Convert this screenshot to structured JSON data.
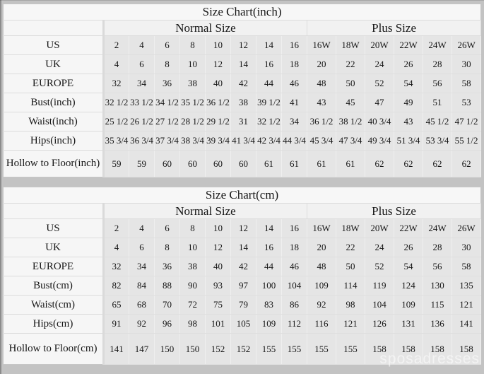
{
  "page": {
    "background": "#c3c3c3",
    "watermark": "sposadresses",
    "colors": {
      "page_bg": "#c3c3c3",
      "header_bg": "#f6f6f6",
      "cell_bg": "#e5e5e5",
      "text": "#161616"
    }
  },
  "chart_data": [
    {
      "type": "table",
      "title": "Size Chart(inch)",
      "column_groups": [
        {
          "label": "Normal Size",
          "span": 8
        },
        {
          "label": "Plus Size",
          "span": 6
        }
      ],
      "rows": [
        {
          "label": "US",
          "values": [
            "2",
            "4",
            "6",
            "8",
            "10",
            "12",
            "14",
            "16",
            "16W",
            "18W",
            "20W",
            "22W",
            "24W",
            "26W"
          ]
        },
        {
          "label": "UK",
          "values": [
            "4",
            "6",
            "8",
            "10",
            "12",
            "14",
            "16",
            "18",
            "20",
            "22",
            "24",
            "26",
            "28",
            "30"
          ]
        },
        {
          "label": "EUROPE",
          "values": [
            "32",
            "34",
            "36",
            "38",
            "40",
            "42",
            "44",
            "46",
            "48",
            "50",
            "52",
            "54",
            "56",
            "58"
          ]
        },
        {
          "label": "Bust(inch)",
          "values": [
            "32 1/2",
            "33 1/2",
            "34 1/2",
            "35 1/2",
            "36 1/2",
            "38",
            "39 1/2",
            "41",
            "43",
            "45",
            "47",
            "49",
            "51",
            "53"
          ]
        },
        {
          "label": "Waist(inch)",
          "values": [
            "25 1/2",
            "26 1/2",
            "27 1/2",
            "28 1/2",
            "29 1/2",
            "31",
            "32 1/2",
            "34",
            "36 1/2",
            "38 1/2",
            "40 3/4",
            "43",
            "45 1/2",
            "47 1/2"
          ]
        },
        {
          "label": "Hips(inch)",
          "values": [
            "35 3/4",
            "36 3/4",
            "37 3/4",
            "38 3/4",
            "39 3/4",
            "41 3/4",
            "42 3/4",
            "44 3/4",
            "45 3/4",
            "47 3/4",
            "49 3/4",
            "51 3/4",
            "53 3/4",
            "55 1/2"
          ]
        },
        {
          "label": "Hollow to Floor(inch)",
          "tall": true,
          "values": [
            "59",
            "59",
            "60",
            "60",
            "60",
            "60",
            "61",
            "61",
            "61",
            "61",
            "62",
            "62",
            "62",
            "62"
          ]
        }
      ]
    },
    {
      "type": "table",
      "title": "Size Chart(cm)",
      "column_groups": [
        {
          "label": "Normal Size",
          "span": 8
        },
        {
          "label": "Plus Size",
          "span": 6
        }
      ],
      "rows": [
        {
          "label": "US",
          "values": [
            "2",
            "4",
            "6",
            "8",
            "10",
            "12",
            "14",
            "16",
            "16W",
            "18W",
            "20W",
            "22W",
            "24W",
            "26W"
          ]
        },
        {
          "label": "UK",
          "values": [
            "4",
            "6",
            "8",
            "10",
            "12",
            "14",
            "16",
            "18",
            "20",
            "22",
            "24",
            "26",
            "28",
            "30"
          ]
        },
        {
          "label": "EUROPE",
          "values": [
            "32",
            "34",
            "36",
            "38",
            "40",
            "42",
            "44",
            "46",
            "48",
            "50",
            "52",
            "54",
            "56",
            "58"
          ]
        },
        {
          "label": "Bust(cm)",
          "values": [
            "82",
            "84",
            "88",
            "90",
            "93",
            "97",
            "100",
            "104",
            "109",
            "114",
            "119",
            "124",
            "130",
            "135"
          ]
        },
        {
          "label": "Waist(cm)",
          "values": [
            "65",
            "68",
            "70",
            "72",
            "75",
            "79",
            "83",
            "86",
            "92",
            "98",
            "104",
            "109",
            "115",
            "121"
          ]
        },
        {
          "label": "Hips(cm)",
          "values": [
            "91",
            "92",
            "96",
            "98",
            "101",
            "105",
            "109",
            "112",
            "116",
            "121",
            "126",
            "131",
            "136",
            "141"
          ]
        },
        {
          "label": "Hollow to Floor(cm)",
          "tall": true,
          "values": [
            "141",
            "147",
            "150",
            "150",
            "152",
            "152",
            "155",
            "155",
            "155",
            "155",
            "158",
            "158",
            "158",
            "158"
          ]
        }
      ]
    }
  ]
}
